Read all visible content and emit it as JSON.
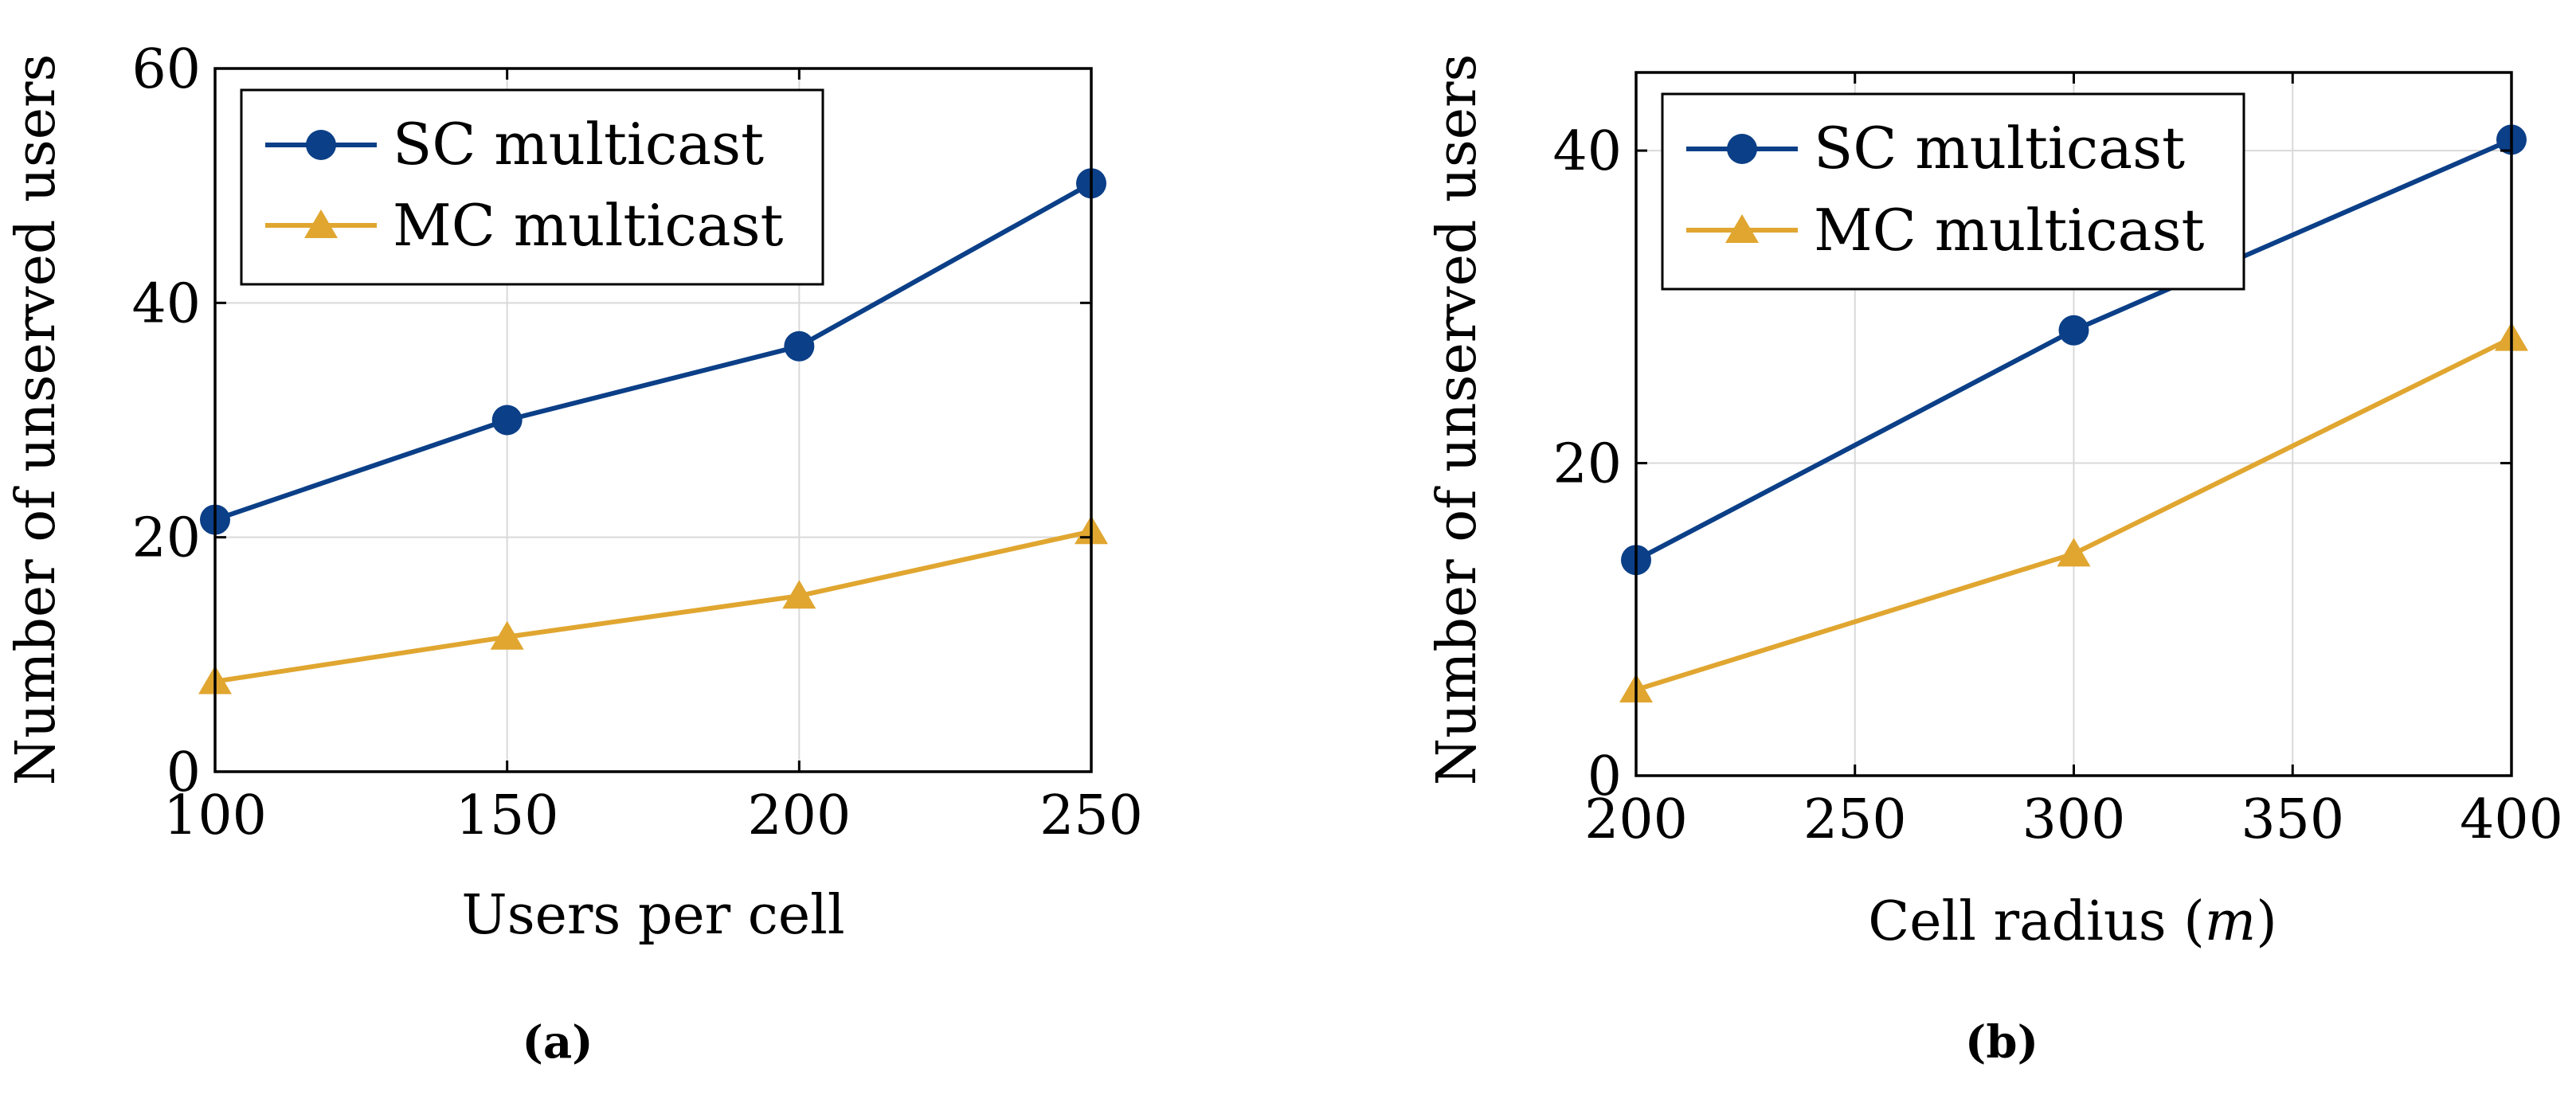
{
  "chart_data": [
    {
      "type": "line",
      "caption": "(a)",
      "xlabel": "Users per cell",
      "ylabel": "Number of unserved users",
      "x": [
        100,
        150,
        200,
        250
      ],
      "xlim": [
        100,
        250
      ],
      "ylim": [
        0,
        60
      ],
      "xticks": [
        "100",
        "150",
        "200",
        "250"
      ],
      "yticks": [
        "0",
        "20",
        "40",
        "60"
      ],
      "grid": true,
      "legend_position": "top-left",
      "series": [
        {
          "name": "SC multicast",
          "color": "#0b3f87",
          "marker": "circle",
          "values": [
            21.5,
            30,
            36.3,
            50.2
          ]
        },
        {
          "name": "MC multicast",
          "color": "#e0a630",
          "marker": "triangle",
          "values": [
            7.7,
            11.5,
            15,
            20.5
          ]
        }
      ]
    },
    {
      "type": "line",
      "caption": "(b)",
      "xlabel": "Cell radius (",
      "xlabel_italic": "m",
      "xlabel_suffix": ")",
      "ylabel": "Number of unserved users",
      "x": [
        200,
        300,
        400
      ],
      "xlim": [
        200,
        400
      ],
      "ylim": [
        0,
        45
      ],
      "xticks": [
        "200",
        "250",
        "300",
        "350",
        "400"
      ],
      "yticks": [
        "0",
        "20",
        "40"
      ],
      "grid": true,
      "legend_position": "top-left",
      "series": [
        {
          "name": "SC multicast",
          "color": "#0b3f87",
          "marker": "circle",
          "values": [
            13.8,
            28.5,
            40.7
          ]
        },
        {
          "name": "MC multicast",
          "color": "#e0a630",
          "marker": "triangle",
          "values": [
            5.5,
            14.2,
            28
          ]
        }
      ]
    }
  ]
}
